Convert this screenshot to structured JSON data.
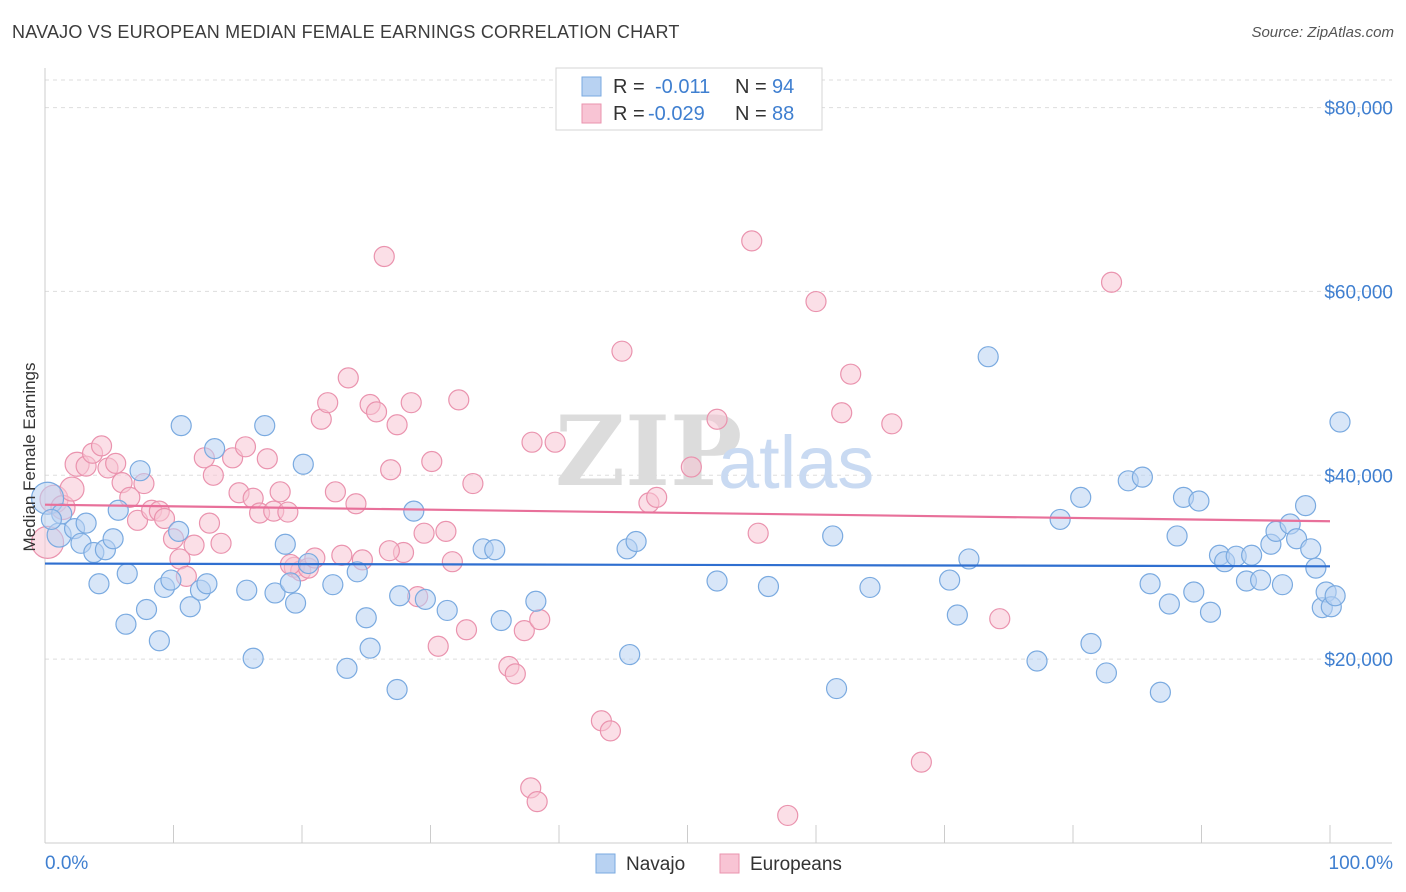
{
  "title": "NAVAJO VS EUROPEAN MEDIAN FEMALE EARNINGS CORRELATION CHART",
  "source": "Source: ZipAtlas.com",
  "watermark": {
    "zip": "ZIP",
    "atlas": "atlas"
  },
  "legend": {
    "rows": [
      {
        "r_label": "R =",
        "r_value": "-0.011",
        "n_label": "N =",
        "n_value": "94"
      },
      {
        "r_label": "R =",
        "r_value": "-0.029",
        "n_label": "N =",
        "n_value": "88"
      }
    ]
  },
  "bottom_legend": [
    "Navajo",
    "Europeans"
  ],
  "colors": {
    "navajo_fill": "#b8d2f2",
    "navajo_stroke": "#7aaae0",
    "navajo_line": "#2f6fd0",
    "europeans_fill": "#f8c4d4",
    "europeans_stroke": "#ea93ae",
    "europeans_line": "#e8709a",
    "tick_text": "#3f7fd0",
    "grid": "#dddddd"
  },
  "chart_data": {
    "type": "scatter",
    "title": "NAVAJO VS EUROPEAN MEDIAN FEMALE EARNINGS CORRELATION CHART",
    "xlabel": "",
    "ylabel": "Median Female Earnings",
    "xlim": [
      0,
      100
    ],
    "ylim": [
      0,
      83000
    ],
    "x_tick_labels": [
      "0.0%",
      "100.0%"
    ],
    "y_ticks": [
      {
        "value": 20000,
        "label": "$20,000"
      },
      {
        "value": 40000,
        "label": "$40,000"
      },
      {
        "value": 60000,
        "label": "$60,000"
      },
      {
        "value": 80000,
        "label": "$80,000"
      }
    ],
    "grid": "horizontal dashed",
    "legend_position": "top-center",
    "series": [
      {
        "name": "Navajo",
        "trend": [
          [
            0,
            30400
          ],
          [
            100,
            30100
          ]
        ],
        "points": [
          [
            0.2,
            37500,
            16
          ],
          [
            1.1,
            33500,
            12
          ],
          [
            1.3,
            35800,
            10
          ],
          [
            2.3,
            34200,
            10
          ],
          [
            2.8,
            32600,
            10
          ],
          [
            3.2,
            34800,
            10
          ],
          [
            3.8,
            31600,
            10
          ],
          [
            4.2,
            28200,
            10
          ],
          [
            4.7,
            31900,
            10
          ],
          [
            5.3,
            33100,
            10
          ],
          [
            5.7,
            36200,
            10
          ],
          [
            6.4,
            29300,
            10
          ],
          [
            6.3,
            23800,
            10
          ],
          [
            7.4,
            40500,
            10
          ],
          [
            7.9,
            25400,
            10
          ],
          [
            8.9,
            22000,
            10
          ],
          [
            9.3,
            27800,
            10
          ],
          [
            9.8,
            28600,
            10
          ],
          [
            10.4,
            33900,
            10
          ],
          [
            10.6,
            45400,
            10
          ],
          [
            11.3,
            25700,
            10
          ],
          [
            12.1,
            27500,
            10
          ],
          [
            12.6,
            28200,
            10
          ],
          [
            13.2,
            42900,
            10
          ],
          [
            15.7,
            27500,
            10
          ],
          [
            16.2,
            20100,
            10
          ],
          [
            17.1,
            45400,
            10
          ],
          [
            17.9,
            27200,
            10
          ],
          [
            18.7,
            32500,
            10
          ],
          [
            19.1,
            28300,
            10
          ],
          [
            19.5,
            26100,
            10
          ],
          [
            20.1,
            41200,
            10
          ],
          [
            20.5,
            30400,
            10
          ],
          [
            22.4,
            28100,
            10
          ],
          [
            23.5,
            19000,
            10
          ],
          [
            24.3,
            29500,
            10
          ],
          [
            25.0,
            24500,
            10
          ],
          [
            25.3,
            21200,
            10
          ],
          [
            27.4,
            16700,
            10
          ],
          [
            27.6,
            26900,
            10
          ],
          [
            28.7,
            36100,
            10
          ],
          [
            29.6,
            26500,
            10
          ],
          [
            31.3,
            25300,
            10
          ],
          [
            34.1,
            32000,
            10
          ],
          [
            35.0,
            31900,
            10
          ],
          [
            35.5,
            24200,
            10
          ],
          [
            38.2,
            26300,
            10
          ],
          [
            45.3,
            32000,
            10
          ],
          [
            45.5,
            20500,
            10
          ],
          [
            46.0,
            32800,
            10
          ],
          [
            52.3,
            28500,
            10
          ],
          [
            56.3,
            27900,
            10
          ],
          [
            61.3,
            33400,
            10
          ],
          [
            61.6,
            16800,
            10
          ],
          [
            64.2,
            27800,
            10
          ],
          [
            70.4,
            28600,
            10
          ],
          [
            71.0,
            24800,
            10
          ],
          [
            71.9,
            30900,
            10
          ],
          [
            73.4,
            52900,
            10
          ],
          [
            77.2,
            19800,
            10
          ],
          [
            79.0,
            35200,
            10
          ],
          [
            80.6,
            37600,
            10
          ],
          [
            81.4,
            21700,
            10
          ],
          [
            82.6,
            18500,
            10
          ],
          [
            84.3,
            39400,
            10
          ],
          [
            85.4,
            39800,
            10
          ],
          [
            86.0,
            28200,
            10
          ],
          [
            86.8,
            16400,
            10
          ],
          [
            87.5,
            26000,
            10
          ],
          [
            88.1,
            33400,
            10
          ],
          [
            88.6,
            37600,
            10
          ],
          [
            89.4,
            27300,
            10
          ],
          [
            89.8,
            37200,
            10
          ],
          [
            90.7,
            25100,
            10
          ],
          [
            91.4,
            31300,
            10
          ],
          [
            91.8,
            30600,
            10
          ],
          [
            92.7,
            31200,
            10
          ],
          [
            93.5,
            28500,
            10
          ],
          [
            93.9,
            31300,
            10
          ],
          [
            94.6,
            28600,
            10
          ],
          [
            95.4,
            32500,
            10
          ],
          [
            95.8,
            33900,
            10
          ],
          [
            96.3,
            28100,
            10
          ],
          [
            96.9,
            34700,
            10
          ],
          [
            97.4,
            33100,
            10
          ],
          [
            98.1,
            36700,
            10
          ],
          [
            98.5,
            32000,
            10
          ],
          [
            98.9,
            29900,
            10
          ],
          [
            99.4,
            25600,
            10
          ],
          [
            99.7,
            27300,
            10
          ],
          [
            100.1,
            25700,
            10
          ],
          [
            100.4,
            26900,
            10
          ],
          [
            101.0,
            45800,
            10
          ],
          [
            0.5,
            35200,
            10
          ]
        ]
      },
      {
        "name": "Europeans",
        "trend": [
          [
            0,
            36800
          ],
          [
            100,
            35000
          ]
        ],
        "points": [
          [
            0.2,
            32700,
            16
          ],
          [
            0.7,
            37400,
            14
          ],
          [
            1.4,
            36500,
            12
          ],
          [
            2.1,
            38500,
            12
          ],
          [
            2.5,
            41200,
            12
          ],
          [
            3.2,
            41000,
            10
          ],
          [
            3.7,
            42400,
            10
          ],
          [
            4.4,
            43200,
            10
          ],
          [
            4.9,
            40800,
            10
          ],
          [
            5.5,
            41300,
            10
          ],
          [
            6.0,
            39200,
            10
          ],
          [
            6.6,
            37600,
            10
          ],
          [
            7.2,
            35100,
            10
          ],
          [
            7.7,
            39100,
            10
          ],
          [
            8.3,
            36200,
            10
          ],
          [
            8.9,
            36100,
            10
          ],
          [
            9.3,
            35300,
            10
          ],
          [
            10.0,
            33100,
            10
          ],
          [
            10.5,
            30900,
            10
          ],
          [
            11.0,
            29000,
            10
          ],
          [
            11.6,
            32400,
            10
          ],
          [
            12.4,
            41900,
            10
          ],
          [
            12.8,
            34800,
            10
          ],
          [
            13.1,
            40000,
            10
          ],
          [
            13.7,
            32600,
            10
          ],
          [
            14.6,
            41900,
            10
          ],
          [
            15.1,
            38100,
            10
          ],
          [
            15.6,
            43100,
            10
          ],
          [
            16.2,
            37500,
            10
          ],
          [
            16.7,
            35900,
            10
          ],
          [
            17.3,
            41800,
            10
          ],
          [
            17.8,
            36100,
            10
          ],
          [
            18.3,
            38200,
            10
          ],
          [
            18.9,
            36000,
            10
          ],
          [
            19.4,
            30000,
            10
          ],
          [
            19.9,
            29600,
            10
          ],
          [
            20.5,
            29900,
            10
          ],
          [
            21.0,
            31000,
            10
          ],
          [
            21.5,
            46100,
            10
          ],
          [
            22.0,
            47900,
            10
          ],
          [
            22.6,
            38200,
            10
          ],
          [
            23.1,
            31300,
            10
          ],
          [
            23.6,
            50600,
            10
          ],
          [
            24.2,
            36900,
            10
          ],
          [
            24.7,
            30800,
            10
          ],
          [
            25.3,
            47700,
            10
          ],
          [
            25.8,
            46900,
            10
          ],
          [
            26.4,
            63800,
            10
          ],
          [
            26.9,
            40600,
            10
          ],
          [
            27.4,
            45500,
            10
          ],
          [
            27.9,
            31600,
            10
          ],
          [
            28.5,
            47900,
            10
          ],
          [
            29.0,
            26800,
            10
          ],
          [
            29.5,
            33700,
            10
          ],
          [
            30.1,
            41500,
            10
          ],
          [
            30.6,
            21400,
            10
          ],
          [
            31.2,
            33900,
            10
          ],
          [
            31.7,
            30600,
            10
          ],
          [
            32.2,
            48200,
            10
          ],
          [
            32.8,
            23200,
            10
          ],
          [
            33.3,
            39100,
            10
          ],
          [
            36.1,
            19200,
            10
          ],
          [
            36.6,
            18400,
            10
          ],
          [
            37.3,
            23100,
            10
          ],
          [
            37.9,
            43600,
            10
          ],
          [
            38.5,
            24300,
            10
          ],
          [
            39.7,
            43600,
            10
          ],
          [
            43.3,
            13300,
            10
          ],
          [
            44.0,
            12200,
            10
          ],
          [
            44.9,
            53500,
            10
          ],
          [
            47.0,
            37000,
            10
          ],
          [
            47.6,
            37600,
            10
          ],
          [
            50.3,
            40900,
            10
          ],
          [
            52.3,
            46100,
            10
          ],
          [
            55.0,
            65500,
            10
          ],
          [
            55.5,
            33700,
            10
          ],
          [
            57.8,
            3000,
            10
          ],
          [
            60.0,
            58900,
            10
          ],
          [
            62.0,
            46800,
            10
          ],
          [
            62.7,
            51000,
            10
          ],
          [
            65.9,
            45600,
            10
          ],
          [
            68.2,
            8800,
            10
          ],
          [
            74.3,
            24400,
            10
          ],
          [
            83.0,
            61000,
            10
          ],
          [
            37.8,
            6000,
            10
          ],
          [
            38.3,
            4500,
            10
          ],
          [
            26.8,
            31800,
            10
          ],
          [
            19.1,
            30300,
            10
          ]
        ]
      }
    ]
  }
}
